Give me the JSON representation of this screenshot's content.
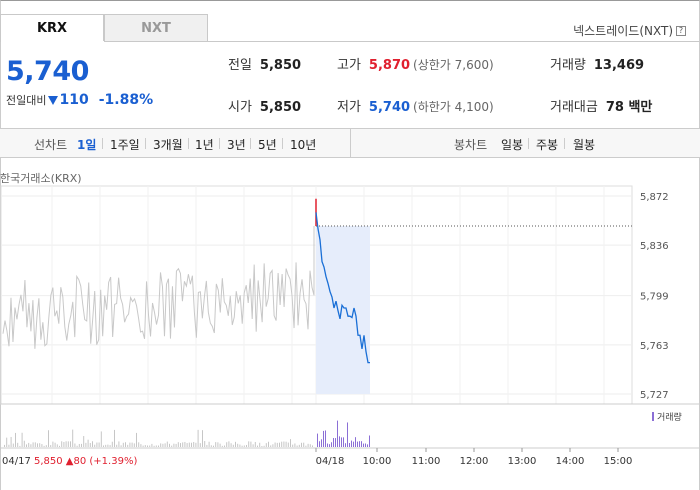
{
  "tabs": [
    {
      "label": "KRX",
      "active": true
    },
    {
      "label": "NXT",
      "active": false
    }
  ],
  "nxt_link": {
    "label": "넥스트레이드(NXT)",
    "help": "?"
  },
  "quote": {
    "price": "5,740",
    "change_label": "전일대비",
    "change_value": "110",
    "change_percent": "-1.88%",
    "color_down": "#1a5fd1",
    "color_up": "#e0202f"
  },
  "stats": {
    "prev_close": {
      "label": "전일",
      "value": "5,850"
    },
    "high": {
      "label": "고가",
      "value": "5,870",
      "sub": "(상한가 7,600)"
    },
    "volume": {
      "label": "거래량",
      "value": "13,469"
    },
    "open": {
      "label": "시가",
      "value": "5,850"
    },
    "low": {
      "label": "저가",
      "value": "5,740",
      "sub": "(하한가 4,100)"
    },
    "amount": {
      "label": "거래대금",
      "value": "78 백만"
    }
  },
  "periods": {
    "line_label": "선차트",
    "line_items": [
      "1일",
      "1주일",
      "3개월",
      "1년",
      "3년",
      "5년",
      "10년"
    ],
    "selected": "1일",
    "candle_label": "봉차트",
    "candle_items": [
      "일봉",
      "주봉",
      "월봉"
    ]
  },
  "exchange_label": "한국거래소(KRX)",
  "volume_legend": "거래량",
  "prev_day_info": {
    "date": "04/17",
    "close": "5,850",
    "change": "80",
    "pct": "(+1.39%)"
  },
  "chart_data": {
    "type": "line",
    "y_ticks": [
      "5,872",
      "5,836",
      "5,799",
      "5,763",
      "5,727"
    ],
    "ylim": [
      5727,
      5872
    ],
    "x_ticks": [
      "04/18",
      "10:00",
      "11:00",
      "12:00",
      "13:00",
      "14:00",
      "15:00"
    ],
    "reference_line": 5850,
    "series": [
      {
        "values": [
          5860,
          5848,
          5840,
          5824,
          5820,
          5813,
          5808,
          5802,
          5798,
          5790,
          5795,
          5788,
          5782,
          5792,
          5790,
          5790,
          5784,
          5784,
          5783,
          5790,
          5784,
          5770,
          5770,
          5760,
          5770,
          5758,
          5750,
          5750
        ],
        "color": "#1a6fd6"
      }
    ]
  }
}
